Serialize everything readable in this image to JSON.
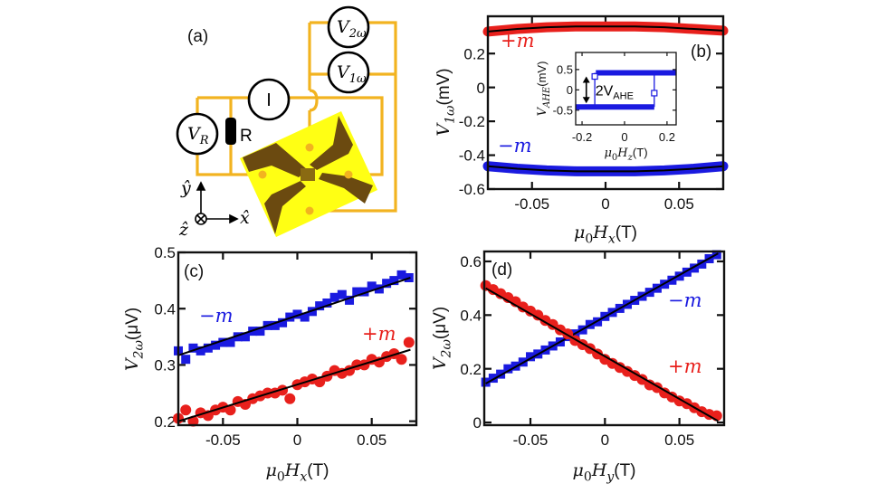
{
  "colors": {
    "plus_m": "#e8201c",
    "minus_m": "#1a1ae0",
    "wire": "#f2b320",
    "chip": "#ffff14",
    "hallbar": "#6b4a10",
    "fit": "#000000"
  },
  "diagram": {
    "panel_label": "(a)",
    "meters": {
      "v2w": {
        "var": "V",
        "sub": "2ω"
      },
      "v1w": {
        "var": "V",
        "sub": "1ω"
      },
      "current": {
        "var": "I"
      },
      "vr": {
        "var": "V",
        "sub": "R"
      }
    },
    "resistor_label": "R",
    "axes": {
      "y": "ŷ",
      "x": "x̂",
      "z": "ẑ"
    }
  },
  "chart_data": [
    {
      "id": "b",
      "panel_label": "(b)",
      "type": "line",
      "xlim": [
        -0.08,
        0.08
      ],
      "ylim": [
        -0.6,
        0.42
      ],
      "xticks": [
        {
          "v": -0.05,
          "t": "-0.05"
        },
        {
          "v": 0,
          "t": "0"
        },
        {
          "v": 0.05,
          "t": "0.05"
        }
      ],
      "yticks": [
        {
          "v": 0.2,
          "t": "0.2"
        },
        {
          "v": 0,
          "t": "0"
        },
        {
          "v": -0.2,
          "t": "-0.2"
        },
        {
          "v": -0.4,
          "t": "-0.4"
        },
        {
          "v": -0.6,
          "t": "-0.6"
        }
      ],
      "xlabel": {
        "sym": "μ",
        "sym_sub": "0",
        "var": "H",
        "var_sub": "x",
        "unit": "(T)"
      },
      "ylabel": {
        "var": "V",
        "var_sub": "1ω",
        "unit": "(mV)"
      },
      "series": [
        {
          "name": "+m",
          "color": "#e8201c",
          "x": [
            -0.08,
            -0.06,
            -0.04,
            -0.02,
            0,
            0.02,
            0.04,
            0.06,
            0.08
          ],
          "y": [
            0.33,
            0.345,
            0.355,
            0.36,
            0.36,
            0.36,
            0.355,
            0.345,
            0.335
          ]
        },
        {
          "name": "−m",
          "color": "#1a1ae0",
          "x": [
            -0.08,
            -0.06,
            -0.04,
            -0.02,
            0,
            0.02,
            0.04,
            0.06,
            0.08
          ],
          "y": [
            -0.465,
            -0.48,
            -0.49,
            -0.495,
            -0.495,
            -0.495,
            -0.49,
            -0.48,
            -0.465
          ]
        }
      ]
    },
    {
      "id": "b_inset",
      "type": "line",
      "xlim": [
        -0.23,
        0.243
      ],
      "ylim": [
        -0.86,
        0.92
      ],
      "xticks": [
        {
          "v": -0.2,
          "t": "-0.2"
        },
        {
          "v": 0,
          "t": "0"
        },
        {
          "v": 0.2,
          "t": "0.2"
        }
      ],
      "yticks": [
        {
          "v": 0.5,
          "t": "0.5"
        },
        {
          "v": 0,
          "t": "0"
        },
        {
          "v": -0.5,
          "t": "-0.5"
        }
      ],
      "xlabel": {
        "sym": "μ",
        "sym_sub": "0",
        "var": "H",
        "var_sub": "z",
        "unit": "(T)"
      },
      "ylabel": {
        "var": "V",
        "var_sub": "AHE",
        "unit": "(mV)"
      },
      "upper_branch": {
        "x": [
          -0.135,
          0.243
        ],
        "y": 0.42
      },
      "lower_branch": {
        "x": [
          -0.23,
          0.14
        ],
        "y": -0.42
      },
      "switch_fields": [
        -0.14,
        0.14
      ],
      "markers": [
        {
          "x": -0.14,
          "y": 0.33
        },
        {
          "x": 0.14,
          "y": -0.08
        }
      ],
      "annotation": {
        "text": "2V",
        "sub": "AHE",
        "arrow_x": -0.18
      }
    },
    {
      "id": "c",
      "panel_label": "(c)",
      "type": "scatter",
      "xlim": [
        -0.08,
        0.08
      ],
      "ylim": [
        0.193,
        0.5
      ],
      "xticks": [
        {
          "v": -0.05,
          "t": "-0.05"
        },
        {
          "v": 0,
          "t": "0"
        },
        {
          "v": 0.05,
          "t": "0.05"
        }
      ],
      "yticks": [
        {
          "v": 0.5,
          "t": "0.5"
        },
        {
          "v": 0.4,
          "t": "0.4"
        },
        {
          "v": 0.3,
          "t": "0.3"
        },
        {
          "v": 0.2,
          "t": "0.2"
        }
      ],
      "xlabel": {
        "sym": "μ",
        "sym_sub": "0",
        "var": "H",
        "var_sub": "x",
        "unit": "(T)"
      },
      "ylabel": {
        "var": "V",
        "var_sub": "2ω",
        "unit": "(μV)"
      },
      "series": [
        {
          "name": "−m",
          "color": "#1a1ae0",
          "marker": "square",
          "x": [
            -0.08,
            -0.075,
            -0.07,
            -0.065,
            -0.06,
            -0.055,
            -0.05,
            -0.045,
            -0.04,
            -0.035,
            -0.03,
            -0.025,
            -0.02,
            -0.015,
            -0.01,
            -0.005,
            0,
            0.005,
            0.01,
            0.015,
            0.02,
            0.025,
            0.03,
            0.035,
            0.04,
            0.045,
            0.05,
            0.055,
            0.06,
            0.065,
            0.07,
            0.075
          ],
          "y": [
            0.325,
            0.31,
            0.33,
            0.325,
            0.33,
            0.335,
            0.34,
            0.34,
            0.35,
            0.35,
            0.36,
            0.36,
            0.37,
            0.37,
            0.375,
            0.385,
            0.39,
            0.385,
            0.395,
            0.405,
            0.41,
            0.42,
            0.425,
            0.415,
            0.43,
            0.43,
            0.44,
            0.435,
            0.445,
            0.45,
            0.46,
            0.455
          ],
          "fit": {
            "x": [
              -0.08,
              0.076
            ],
            "y": [
              0.317,
              0.455
            ]
          }
        },
        {
          "name": "+m",
          "color": "#e8201c",
          "marker": "circle",
          "x": [
            -0.08,
            -0.075,
            -0.07,
            -0.065,
            -0.06,
            -0.055,
            -0.05,
            -0.045,
            -0.04,
            -0.035,
            -0.03,
            -0.025,
            -0.02,
            -0.015,
            -0.01,
            -0.005,
            0,
            0.005,
            0.01,
            0.015,
            0.02,
            0.025,
            0.03,
            0.035,
            0.04,
            0.045,
            0.05,
            0.055,
            0.06,
            0.065,
            0.07,
            0.075
          ],
          "y": [
            0.205,
            0.22,
            0.2,
            0.215,
            0.21,
            0.22,
            0.225,
            0.22,
            0.235,
            0.23,
            0.24,
            0.245,
            0.25,
            0.25,
            0.255,
            0.24,
            0.265,
            0.27,
            0.275,
            0.27,
            0.28,
            0.29,
            0.285,
            0.29,
            0.3,
            0.3,
            0.31,
            0.305,
            0.315,
            0.32,
            0.31,
            0.34
          ],
          "fit": {
            "x": [
              -0.08,
              0.076
            ],
            "y": [
              0.2,
              0.327
            ]
          }
        }
      ]
    },
    {
      "id": "d",
      "panel_label": "(d)",
      "type": "scatter",
      "xlim": [
        -0.081,
        0.08
      ],
      "ylim": [
        -0.01,
        0.637
      ],
      "xticks": [
        {
          "v": -0.05,
          "t": "-0.05"
        },
        {
          "v": 0,
          "t": "0"
        },
        {
          "v": 0.05,
          "t": "0.05"
        }
      ],
      "yticks": [
        {
          "v": 0.6,
          "t": "0.6"
        },
        {
          "v": 0.4,
          "t": "0.4"
        },
        {
          "v": 0.2,
          "t": "0.2"
        },
        {
          "v": 0,
          "t": "0"
        }
      ],
      "xlabel": {
        "sym": "μ",
        "sym_sub": "0",
        "var": "H",
        "var_sub": "y",
        "unit": "(T)"
      },
      "ylabel": {
        "var": "V",
        "var_sub": "2ω",
        "unit": "(μV)"
      },
      "series": [
        {
          "name": "−m",
          "color": "#1a1ae0",
          "marker": "square",
          "x": [
            -0.08,
            -0.075,
            -0.07,
            -0.065,
            -0.06,
            -0.055,
            -0.05,
            -0.045,
            -0.04,
            -0.035,
            -0.03,
            -0.025,
            -0.02,
            -0.015,
            -0.01,
            -0.005,
            0,
            0.005,
            0.01,
            0.015,
            0.02,
            0.025,
            0.03,
            0.035,
            0.04,
            0.045,
            0.05,
            0.055,
            0.06,
            0.065,
            0.07,
            0.075
          ],
          "y": [
            0.15,
            0.165,
            0.18,
            0.2,
            0.21,
            0.225,
            0.245,
            0.255,
            0.27,
            0.285,
            0.3,
            0.32,
            0.33,
            0.345,
            0.365,
            0.375,
            0.395,
            0.41,
            0.425,
            0.44,
            0.455,
            0.47,
            0.485,
            0.5,
            0.515,
            0.53,
            0.545,
            0.56,
            0.575,
            0.59,
            0.61,
            0.625
          ],
          "fit": {
            "x": [
              -0.08,
              0.076
            ],
            "y": [
              0.145,
              0.63
            ]
          }
        },
        {
          "name": "+m",
          "color": "#e8201c",
          "marker": "circle",
          "x": [
            -0.08,
            -0.075,
            -0.07,
            -0.065,
            -0.06,
            -0.055,
            -0.05,
            -0.045,
            -0.04,
            -0.035,
            -0.03,
            -0.025,
            -0.02,
            -0.015,
            -0.01,
            -0.005,
            0,
            0.005,
            0.01,
            0.015,
            0.02,
            0.025,
            0.03,
            0.035,
            0.04,
            0.045,
            0.05,
            0.055,
            0.06,
            0.065,
            0.07,
            0.075
          ],
          "y": [
            0.51,
            0.495,
            0.48,
            0.465,
            0.45,
            0.43,
            0.415,
            0.4,
            0.38,
            0.365,
            0.345,
            0.33,
            0.305,
            0.29,
            0.275,
            0.255,
            0.235,
            0.22,
            0.205,
            0.19,
            0.175,
            0.16,
            0.14,
            0.13,
            0.11,
            0.095,
            0.08,
            0.07,
            0.055,
            0.04,
            0.03,
            0.025
          ],
          "fit": {
            "x": [
              -0.08,
              0.076
            ],
            "y": [
              0.5,
              0.005
            ]
          }
        }
      ]
    }
  ]
}
